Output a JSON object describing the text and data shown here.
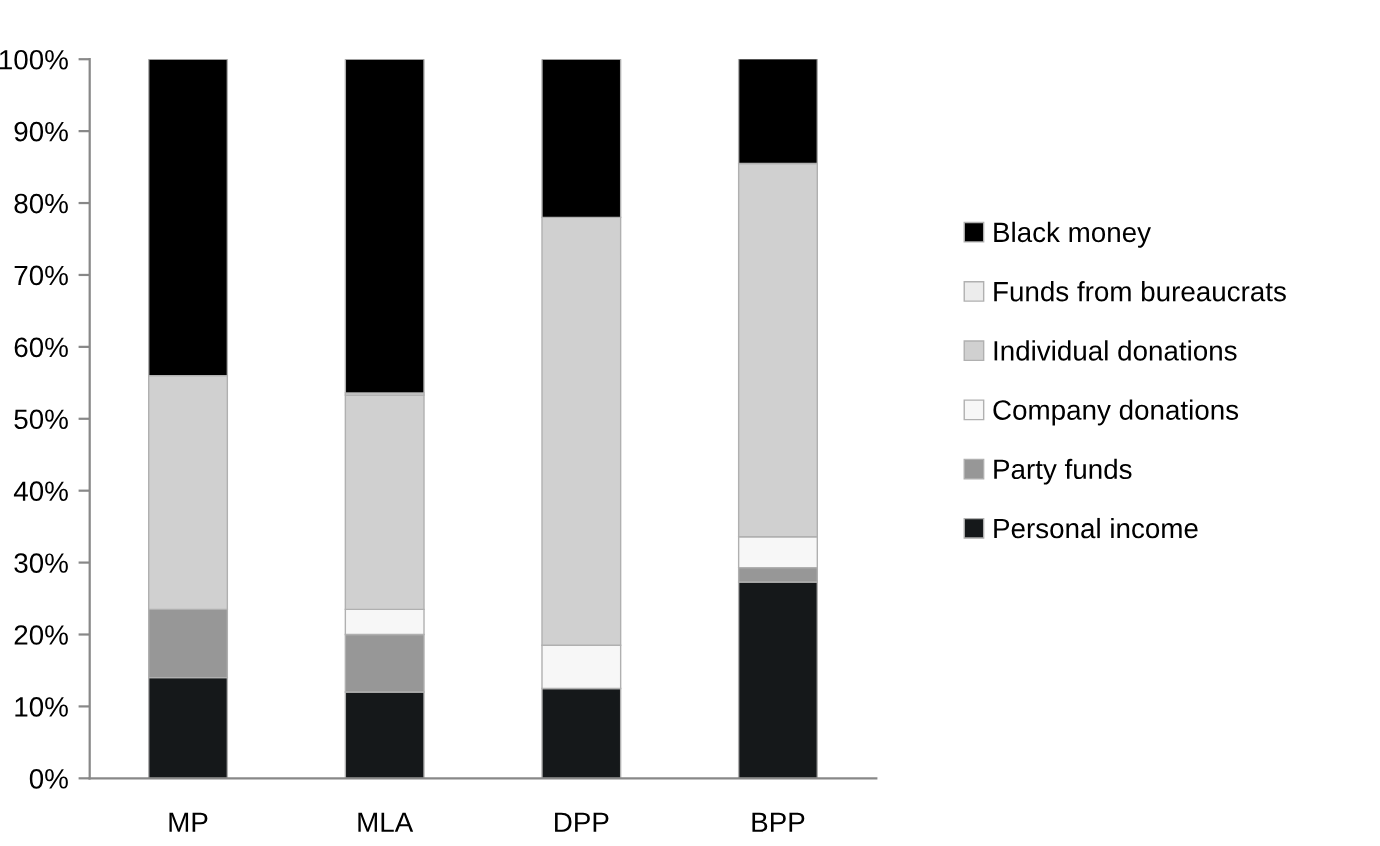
{
  "chart_data": {
    "type": "bar",
    "stacked": true,
    "categories": [
      "MP",
      "MLA",
      "DPP",
      "BPP"
    ],
    "series": [
      {
        "name": "Personal income",
        "color": "#15181a",
        "values": [
          14,
          12,
          12.5,
          27.3
        ]
      },
      {
        "name": "Party funds",
        "color": "#979797",
        "values": [
          9.5,
          8,
          0,
          2
        ]
      },
      {
        "name": "Company donations",
        "color": "#f7f7f7",
        "values": [
          0,
          3.5,
          6,
          4.3
        ]
      },
      {
        "name": "Individual donations",
        "color": "#d0d0d0",
        "values": [
          32.5,
          29.8,
          59.5,
          51.9
        ]
      },
      {
        "name": "Funds from bureaucrats",
        "color": "#ececec",
        "values": [
          0,
          0.3,
          0,
          0
        ]
      },
      {
        "name": "Black money",
        "color": "#000000",
        "values": [
          44,
          46.4,
          22,
          14.6
        ]
      }
    ],
    "ylim": [
      0,
      100
    ],
    "yticks": [
      {
        "value": 0,
        "label": "0%"
      },
      {
        "value": 10,
        "label": "10%"
      },
      {
        "value": 20,
        "label": "20%"
      },
      {
        "value": 30,
        "label": "30%"
      },
      {
        "value": 40,
        "label": "40%"
      },
      {
        "value": 50,
        "label": "50%"
      },
      {
        "value": 60,
        "label": "60%"
      },
      {
        "value": 70,
        "label": "70%"
      },
      {
        "value": 80,
        "label": "80%"
      },
      {
        "value": 90,
        "label": "90%"
      },
      {
        "value": 100,
        "label": "100%"
      }
    ],
    "grid": false,
    "legend": "right"
  }
}
